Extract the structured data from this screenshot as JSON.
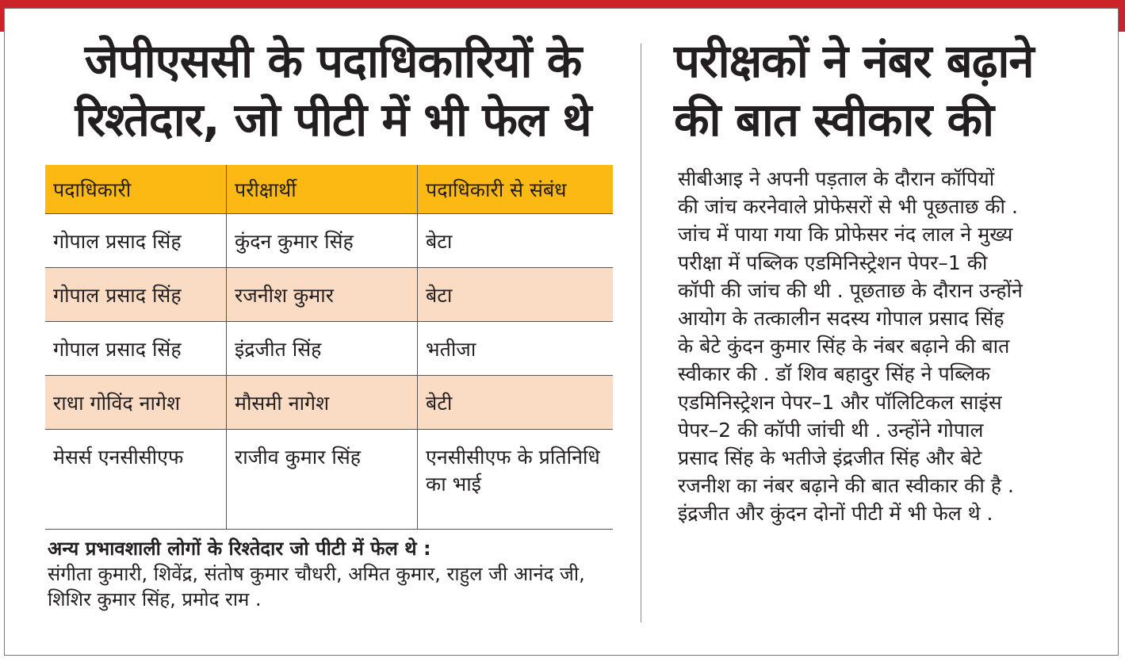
{
  "colors": {
    "band": "#cc2229",
    "table_header": "#fdb913",
    "alt_row": "#fadbc4"
  },
  "left": {
    "headline": [
      "जेपीएससी के पदाधिकारियों के",
      "रिश्तेदार, जो पीटी में भी फेल थे"
    ],
    "table": {
      "headers": [
        "पदाधिकारी",
        "परीक्षार्थी",
        "पदाधिकारी से संबंध"
      ],
      "rows": [
        [
          "गोपाल प्रसाद सिंह",
          "कुंदन कुमार सिंह",
          "बेटा"
        ],
        [
          "गोपाल प्रसाद सिंह",
          "रजनीश कुमार",
          "बेटा"
        ],
        [
          "गोपाल प्रसाद सिंह",
          "इंद्रजीत सिंह",
          "भतीजा"
        ],
        [
          "राधा गोविंद नागेश",
          "मौसमी नागेश",
          "बेटी"
        ],
        [
          "मेसर्स एनसीसीएफ",
          "राजीव कुमार सिंह",
          "एनसीसीएफ के प्रतिनिधि का भाई"
        ]
      ]
    },
    "note_title": "अन्य प्रभावशाली लोगों के रिश्तेदार जो पीटी में फेल थे :",
    "note_text": "संगीता कुमारी, शिवेंद्र, संतोष कुमार चौधरी, अमित कुमार, राहुल जी आनंद जी, शिशिर कुमार सिंह, प्रमोद राम ."
  },
  "right": {
    "headline": [
      "परीक्षकों ने नंबर बढ़ाने",
      "की बात स्वीकार की"
    ],
    "body_lines": [
      "सीबीआइ ने अपनी पड़ताल के दौरान कॉपियों",
      "की जांच करनेवाले प्रोफेसरों से भी पूछताछ की .",
      "जांच में पाया गया कि प्रोफेसर नंद लाल ने मुख्य",
      "परीक्षा में पब्लिक एडमिनिस्ट्रेशन पेपर–1 की",
      "कॉपी की जांच की थी . पूछताछ के दौरान उन्होंने",
      "आयोग के तत्कालीन सदस्य गोपाल प्रसाद सिंह",
      "के बेटे कुंदन कुमार सिंह के नंबर बढ़ाने की बात",
      "स्वीकार की . डॉ शिव बहादुर सिंह ने पब्लिक",
      "एडमिनिस्ट्रेशन पेपर–1 और पॉलिटिकल साइंस",
      "पेपर–2 की कॉपी जांची थी . उन्होंने गोपाल",
      "प्रसाद सिंह के भतीजे इंद्रजीत सिंह और बेटे",
      "रजनीश का नंबर बढ़ाने की बात स्वीकार की है .",
      "इंद्रजीत और कुंदन दोनों पीटी में भी फेल थे ."
    ]
  }
}
